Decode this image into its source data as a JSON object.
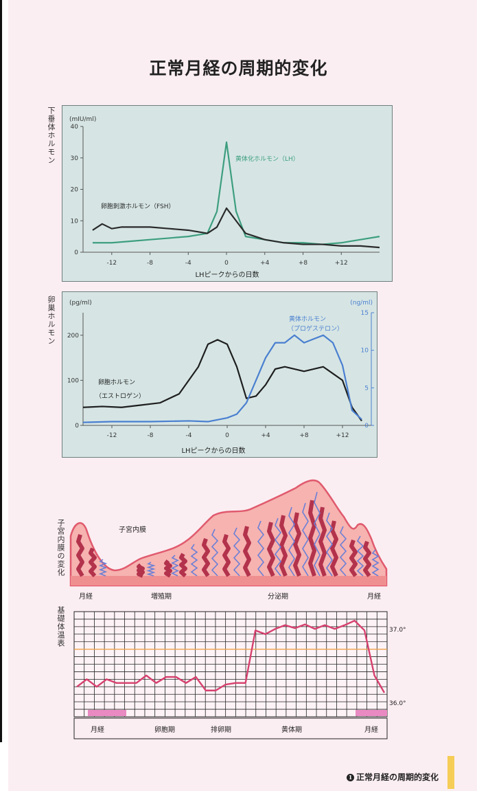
{
  "page": {
    "title": "正常月経の周期的変化",
    "footer_num": "1",
    "footer": "正常月経の周期的変化"
  },
  "axis_labels": {
    "pituitary": "下垂体ホルモン",
    "ovarian": "卵巣ホルモン",
    "uterine": "子宮内膜の変化",
    "bbt": "基礎体温表"
  },
  "chart_data": [
    {
      "type": "line",
      "ylabel": "(mIU/ml)",
      "xlabel": "LHピークからの日数",
      "ylim": [
        0,
        40
      ],
      "xlim": [
        -15,
        16
      ],
      "y_ticks": [
        "40",
        "30",
        "20",
        "10",
        "0"
      ],
      "x_ticks": [
        "-12",
        "-8",
        "-4",
        "0",
        "+4",
        "+8",
        "+12"
      ],
      "series": [
        {
          "name": "黄体化ホルモン（LH）",
          "color": "#3d9e7e",
          "x": [
            -14,
            -12,
            -10,
            -8,
            -6,
            -4,
            -2,
            -1,
            0,
            1,
            2,
            4,
            6,
            8,
            10,
            12,
            14,
            16
          ],
          "y": [
            3,
            3,
            3.5,
            4,
            4.5,
            5,
            6,
            13,
            35,
            13,
            5,
            4,
            3,
            3,
            2.5,
            3,
            4,
            5
          ]
        },
        {
          "name": "卵胞刺激ホルモン（FSH）",
          "color": "#2a2a2a",
          "x": [
            -14,
            -13,
            -12,
            -11,
            -10,
            -8,
            -6,
            -4,
            -2,
            -1,
            0,
            1,
            2,
            4,
            6,
            8,
            10,
            12,
            14,
            16
          ],
          "y": [
            7,
            9,
            7.5,
            8,
            8,
            8,
            7.5,
            7,
            6,
            8,
            14,
            10,
            6,
            4,
            3,
            2.5,
            2.5,
            2,
            2,
            1.5
          ]
        }
      ]
    },
    {
      "type": "line",
      "ylabel": "(pg/ml)",
      "ylabel_right": "(ng/ml)",
      "xlabel": "LHピークからの日数",
      "ylim": [
        0,
        250
      ],
      "ylim_right": [
        0,
        15
      ],
      "xlim": [
        -15,
        15
      ],
      "y_ticks": [
        "200",
        "100",
        "0"
      ],
      "y_ticks_right": [
        "15",
        "10",
        "5",
        "0"
      ],
      "x_ticks": [
        "-12",
        "-8",
        "-4",
        "0",
        "+4",
        "+8",
        "+12"
      ],
      "series": [
        {
          "name": "卵胞ホルモン（エストロゲン）",
          "axis": "left",
          "color": "#1e1e1e",
          "x": [
            -15,
            -13,
            -11,
            -9,
            -7,
            -5,
            -3,
            -2,
            -1,
            0,
            1,
            2,
            3,
            4,
            5,
            6,
            8,
            10,
            11,
            12,
            13,
            14
          ],
          "y": [
            40,
            42,
            40,
            45,
            50,
            70,
            130,
            180,
            190,
            180,
            130,
            60,
            65,
            90,
            125,
            130,
            120,
            130,
            115,
            100,
            40,
            10
          ]
        },
        {
          "name": "黄体ホルモン（プロゲステロン）",
          "axis": "right",
          "color": "#4a7fd0",
          "x": [
            -15,
            -12,
            -8,
            -4,
            -2,
            0,
            1,
            2,
            3,
            4,
            5,
            6,
            7,
            8,
            9,
            10,
            11,
            12,
            13,
            14
          ],
          "y": [
            0.4,
            0.5,
            0.5,
            0.6,
            0.5,
            1,
            1.5,
            3,
            6,
            9,
            11,
            11,
            12,
            11,
            11.5,
            12,
            11,
            8,
            2,
            0.8
          ]
        }
      ]
    },
    {
      "type": "line",
      "ylim": [
        35.8,
        37.2
      ],
      "y_labels": [
        "37.0°",
        "36.0°"
      ],
      "series": [
        {
          "name": "基礎体温",
          "color": "#d6406e",
          "x": [
            0,
            1,
            2,
            3,
            4,
            5,
            6,
            7,
            8,
            9,
            10,
            11,
            12,
            13,
            14,
            15,
            16,
            17,
            18,
            19,
            20,
            21,
            22,
            23,
            24,
            25,
            26,
            27,
            28,
            29,
            30,
            31
          ],
          "y": [
            36.2,
            36.3,
            36.2,
            36.3,
            36.25,
            36.25,
            36.25,
            36.35,
            36.25,
            36.33,
            36.33,
            36.25,
            36.33,
            36.15,
            36.15,
            36.23,
            36.25,
            36.25,
            36.95,
            36.9,
            36.97,
            37.02,
            36.98,
            37.03,
            36.97,
            37.02,
            36.97,
            37.02,
            37.08,
            36.95,
            36.35,
            36.12
          ]
        }
      ]
    }
  ],
  "annotations": {
    "lh": "黄体化ホルモン（LH）",
    "fsh": "卵胞刺激ホルモン（FSH）",
    "estrogen_1": "卵胞ホルモン",
    "estrogen_2": "（エストロゲン）",
    "progesterone_1": "黄体ホルモン",
    "progesterone_2": "（プロゲステロン）",
    "endometrium": "子宮内膜"
  },
  "uterine_phases": [
    "月経",
    "増殖期",
    "分泌期",
    "月経"
  ],
  "bbt_phases": [
    "月経",
    "卵胞期",
    "排卵期",
    "黄体期",
    "月経"
  ],
  "colors": {
    "panel": "#d6e5e4",
    "lh": "#3d9e7e",
    "progesterone": "#4a7fd0",
    "bbt": "#d6406e",
    "tissue": "#f6b3b0"
  }
}
